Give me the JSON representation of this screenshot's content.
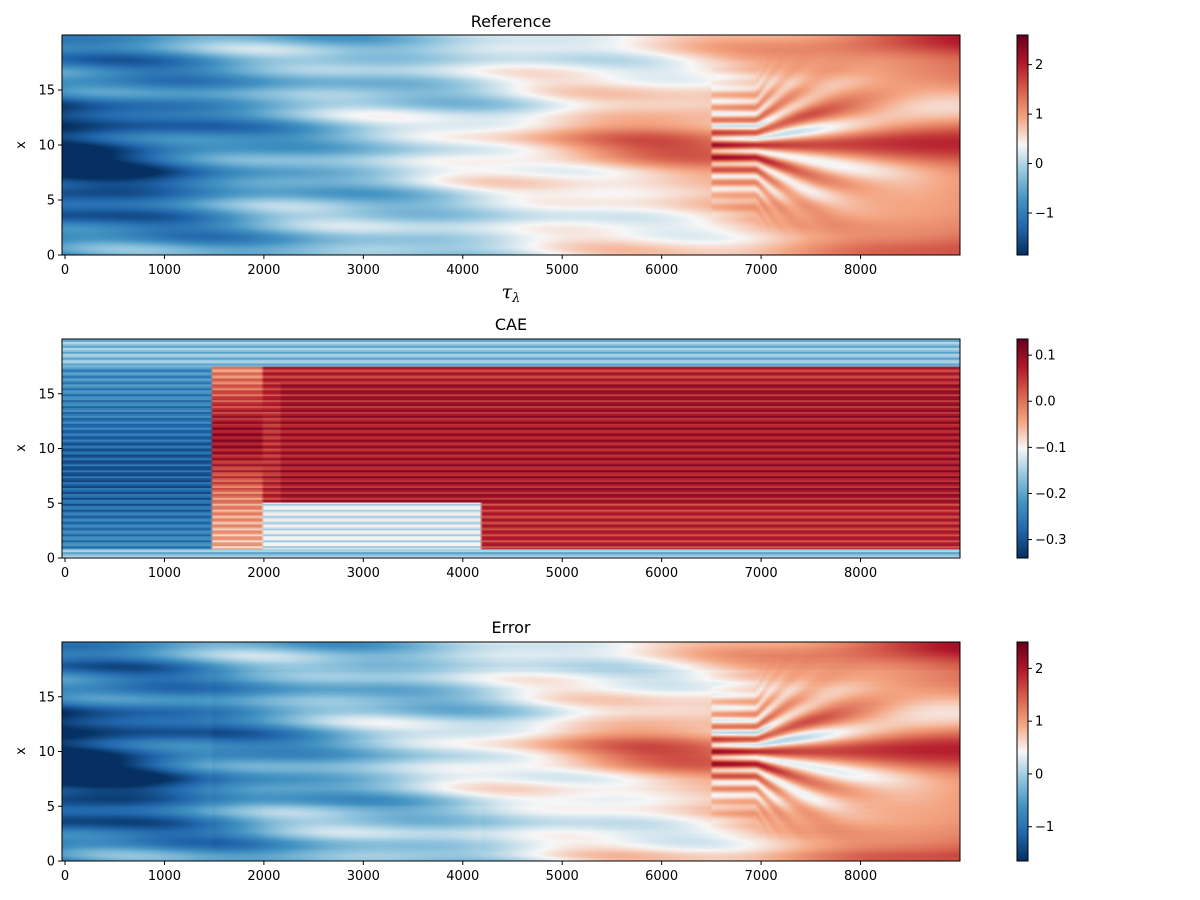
{
  "chart_data": [
    {
      "type": "heatmap",
      "title": "Reference",
      "xlabel": "τ",
      "xlabel_subscript": "λ",
      "ylabel": "x",
      "xlim": [
        0,
        9000
      ],
      "ylim": [
        0,
        20
      ],
      "xticks": [
        "0",
        "1000",
        "2000",
        "3000",
        "4000",
        "5000",
        "6000",
        "7000",
        "8000"
      ],
      "yticks": [
        "0",
        "5",
        "10",
        "15"
      ],
      "colormap": "RdBu_r",
      "clim": [
        -1.85,
        2.6
      ],
      "colorbar_ticks": [
        "−1",
        "0",
        "1",
        "2"
      ],
      "colorbar_tick_values": [
        -1,
        0,
        1,
        2
      ],
      "pattern": "reference"
    },
    {
      "type": "heatmap",
      "title": "CAE",
      "xlabel": "",
      "ylabel": "x",
      "xlim": [
        0,
        9000
      ],
      "ylim": [
        0,
        20
      ],
      "xticks": [
        "0",
        "1000",
        "2000",
        "3000",
        "4000",
        "5000",
        "6000",
        "7000",
        "8000"
      ],
      "yticks": [
        "0",
        "5",
        "10",
        "15"
      ],
      "colormap": "RdBu_r",
      "clim": [
        -0.34,
        0.135
      ],
      "colorbar_ticks": [
        "−0.3",
        "−0.2",
        "−0.1",
        "0.0",
        "0.1"
      ],
      "colorbar_tick_values": [
        -0.3,
        -0.2,
        -0.1,
        0.0,
        0.1
      ],
      "pattern": "cae"
    },
    {
      "type": "heatmap",
      "title": "Error",
      "xlabel": "",
      "ylabel": "x",
      "xlim": [
        0,
        9000
      ],
      "ylim": [
        0,
        20
      ],
      "xticks": [
        "0",
        "1000",
        "2000",
        "3000",
        "4000",
        "5000",
        "6000",
        "7000",
        "8000"
      ],
      "yticks": [
        "0",
        "5",
        "10",
        "15"
      ],
      "colormap": "RdBu_r",
      "clim": [
        -1.65,
        2.5
      ],
      "colorbar_ticks": [
        "−1",
        "0",
        "1",
        "2"
      ],
      "colorbar_tick_values": [
        -1,
        0,
        1,
        2
      ],
      "pattern": "error"
    }
  ]
}
